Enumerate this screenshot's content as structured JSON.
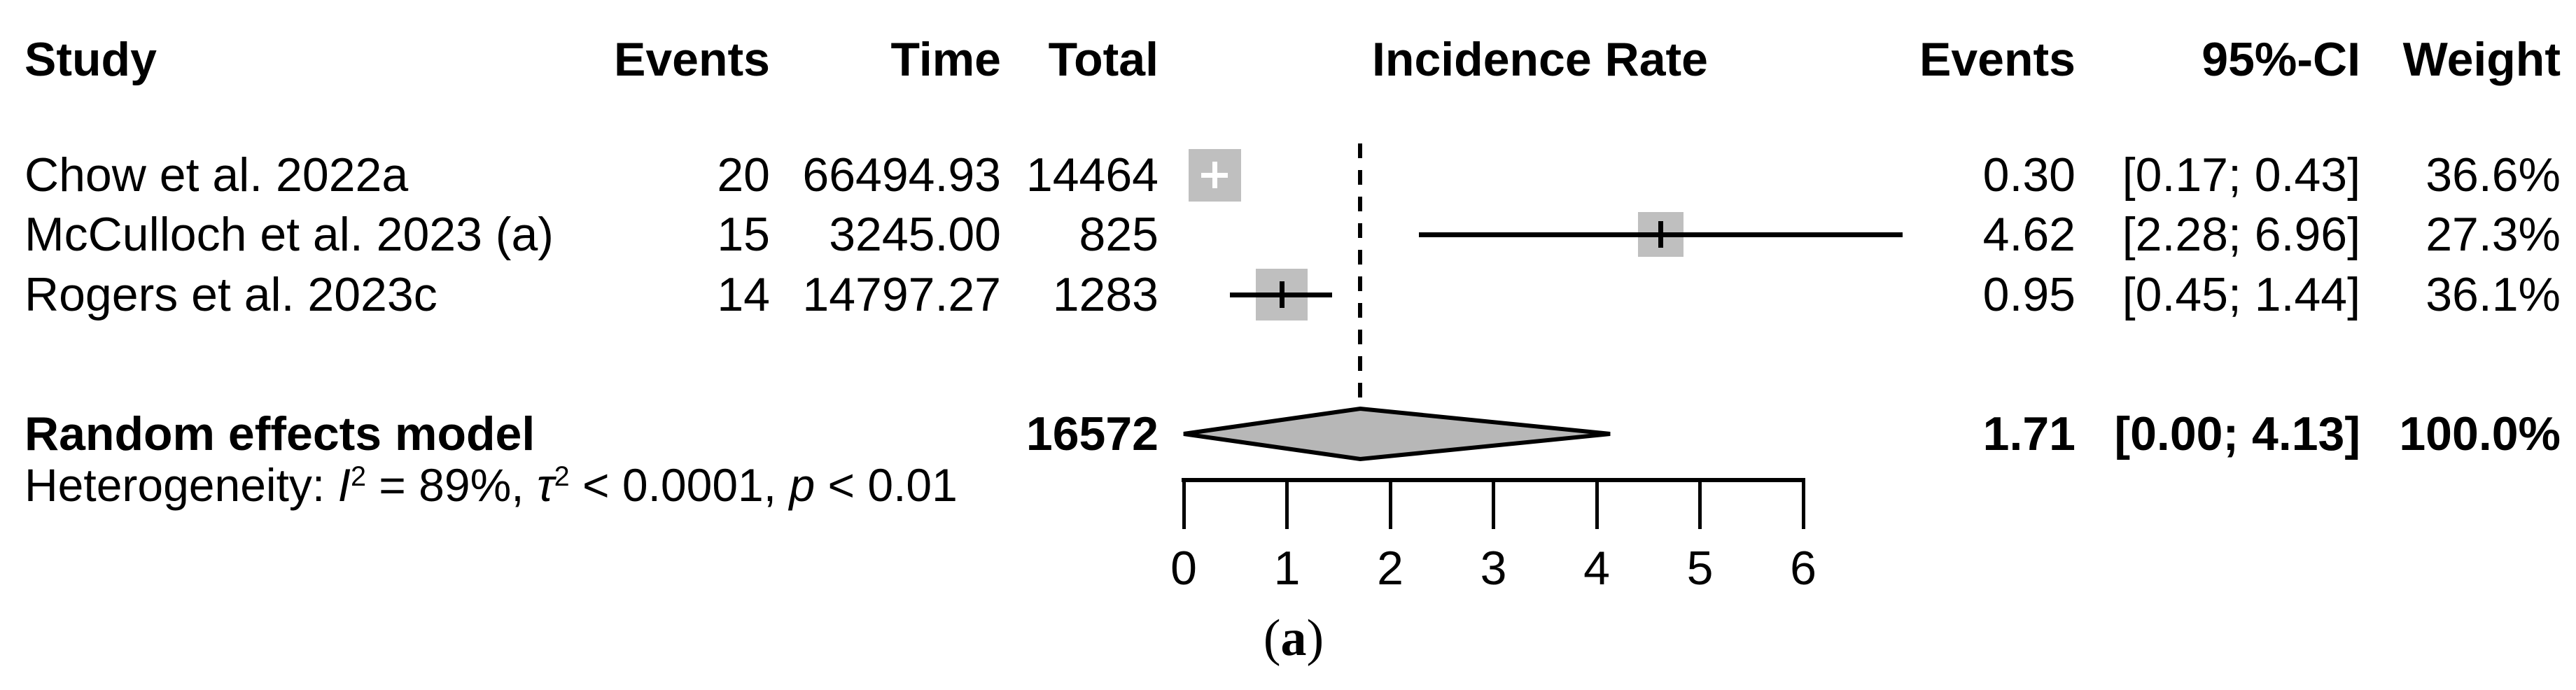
{
  "header": {
    "study": "Study",
    "events": "Events",
    "time": "Time",
    "total": "Total",
    "incidence_rate": "Incidence Rate",
    "events2": "Events",
    "ci": "95%-CI",
    "weight": "Weight"
  },
  "studies": [
    {
      "name": "Chow et al. 2022a",
      "events": "20",
      "time": "66494.93",
      "total": "14464",
      "rate": "0.30",
      "ci": "[0.17; 0.43]",
      "weight": "36.6%"
    },
    {
      "name": "McCulloch et al. 2023 (a)",
      "events": "15",
      "time": "3245.00",
      "total": "825",
      "rate": "4.62",
      "ci": "[2.28; 6.96]",
      "weight": "27.3%"
    },
    {
      "name": "Rogers et al. 2023c",
      "events": "14",
      "time": "14797.27",
      "total": "1283",
      "rate": "0.95",
      "ci": "[0.45; 1.44]",
      "weight": "36.1%"
    }
  ],
  "pooled": {
    "label": "Random effects model",
    "total": "16572",
    "rate": "1.71",
    "ci": "[0.00; 4.13]",
    "weight": "100.0%"
  },
  "heterogeneity": {
    "prefix": "Heterogeneity: ",
    "i": "I",
    "i_sup": "2",
    "seg1": " = 89%, ",
    "tau": "τ",
    "tau_sup": "2",
    "seg2": " < 0.0001, ",
    "p": "p",
    "seg3": " < 0.01"
  },
  "caption": {
    "open": "(",
    "letter": "a",
    "close": ")"
  },
  "chart_data": {
    "type": "forest",
    "title": "Incidence Rate",
    "categories": [
      "Chow et al. 2022a",
      "McCulloch et al. 2023 (a)",
      "Rogers et al. 2023c"
    ],
    "studies": [
      {
        "name": "Chow et al. 2022a",
        "events": 20,
        "time": 66494.93,
        "total": 14464,
        "estimate": 0.3,
        "ci_low": 0.17,
        "ci_high": 0.43,
        "weight_pct": 36.6
      },
      {
        "name": "McCulloch et al. 2023 (a)",
        "events": 15,
        "time": 3245.0,
        "total": 825,
        "estimate": 4.62,
        "ci_low": 2.28,
        "ci_high": 6.96,
        "weight_pct": 27.3
      },
      {
        "name": "Rogers et al. 2023c",
        "events": 14,
        "time": 14797.27,
        "total": 1283,
        "estimate": 0.95,
        "ci_low": 0.45,
        "ci_high": 1.44,
        "weight_pct": 36.1
      }
    ],
    "pooled": {
      "model": "Random effects model",
      "total": 16572,
      "estimate": 1.71,
      "ci_low": 0.0,
      "ci_high": 4.13,
      "weight_pct": 100.0
    },
    "heterogeneity": {
      "I2": "89%",
      "tau2": "< 0.0001",
      "p": "< 0.01"
    },
    "x_ticks": [
      0,
      1,
      2,
      3,
      4,
      5,
      6
    ],
    "xlim": [
      0,
      6
    ],
    "xlabel": "",
    "ylabel": "",
    "grid": false,
    "legend": "none",
    "marker_color": "#bfbfbf",
    "diamond_color": "#b7b7b7",
    "panel_label": "(a)"
  }
}
